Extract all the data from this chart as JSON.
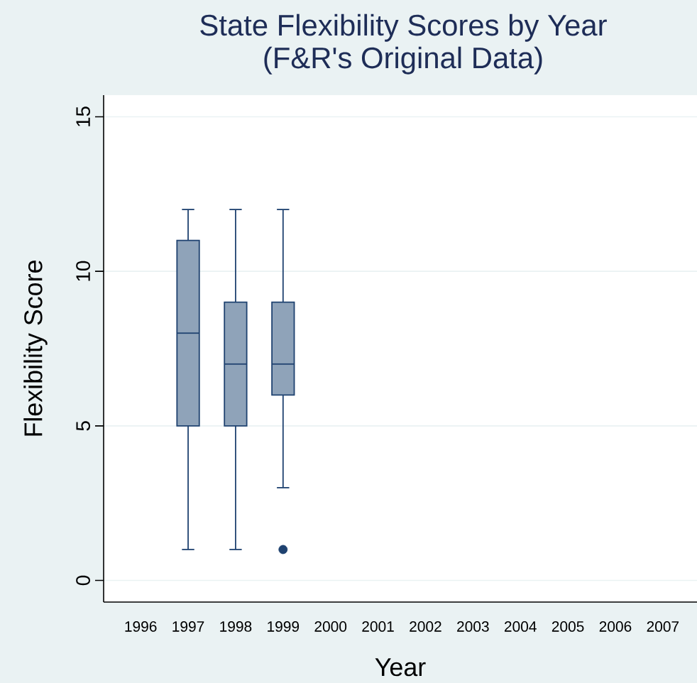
{
  "chart_data": {
    "type": "box",
    "title": "State Flexibility Scores by Year",
    "subtitle": "(F&R's Original Data)",
    "xlabel": "Year",
    "ylabel": "Flexibility Score",
    "categories": [
      "1996",
      "1997",
      "1998",
      "1999",
      "2000",
      "2001",
      "2002",
      "2003",
      "2004",
      "2005",
      "2006",
      "2007"
    ],
    "boxes": [
      null,
      {
        "low": 1,
        "q1": 5,
        "median": 8,
        "q3": 11,
        "high": 12
      },
      {
        "low": 1,
        "q1": 5,
        "median": 7,
        "q3": 9,
        "high": 12
      },
      {
        "low": 3,
        "q1": 6,
        "median": 7,
        "q3": 9,
        "high": 12,
        "outliers": [
          1
        ]
      },
      null,
      null,
      null,
      null,
      null,
      null,
      null,
      null
    ],
    "color": "#8fa3b9",
    "ylim": [
      -0.7,
      15.7
    ],
    "yticks": [
      0,
      5,
      10,
      15
    ],
    "grid": "y",
    "marker": "circle"
  }
}
